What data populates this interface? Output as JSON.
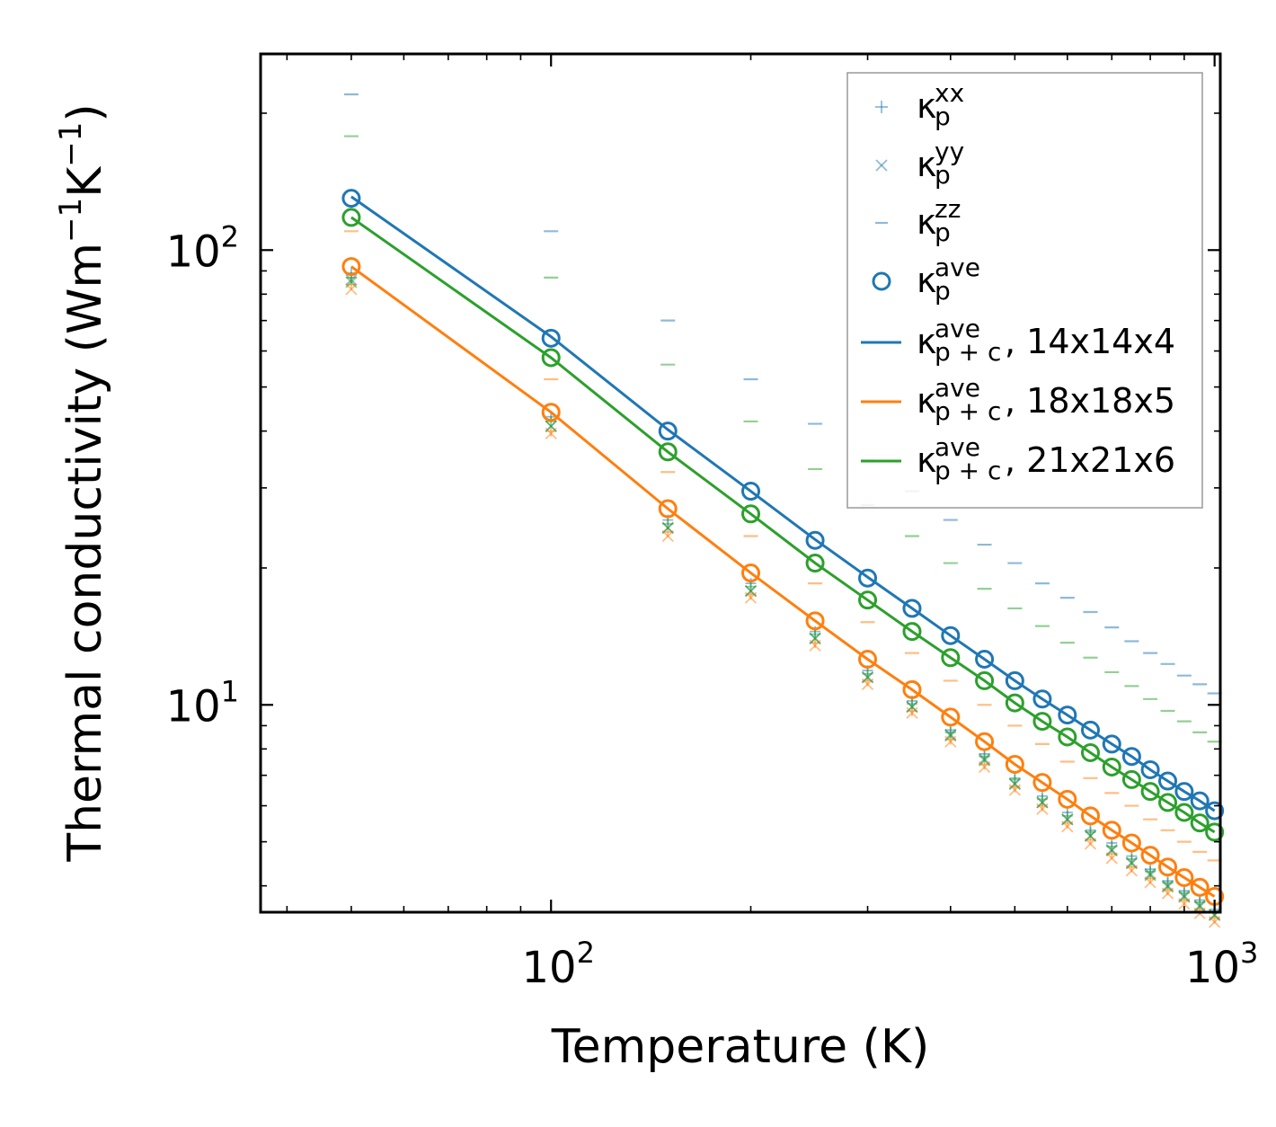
{
  "chart_data": {
    "type": "scatter",
    "title": "",
    "xlabel": "Temperature (K)",
    "ylabel": {
      "base": "Thermal conductivity (Wm",
      "exp1": "−1",
      "mid": "K",
      "exp2": "−1",
      "end": ")"
    },
    "xscale": "log",
    "yscale": "log",
    "xlim": [
      36.5,
      1020
    ],
    "ylim": [
      3.5,
      270
    ],
    "x_tick_labels": [
      {
        "value": 100,
        "base": "10",
        "exp": "2"
      },
      {
        "value": 1000,
        "base": "10",
        "exp": "3"
      }
    ],
    "y_tick_labels": [
      {
        "value": 10,
        "base": "10",
        "exp": "1"
      },
      {
        "value": 100,
        "base": "10",
        "exp": "2"
      }
    ],
    "grid": false,
    "legend_position": "top-right",
    "x": [
      50,
      100,
      150,
      200,
      250,
      300,
      350,
      400,
      450,
      500,
      550,
      600,
      650,
      700,
      750,
      800,
      850,
      900,
      950,
      1000
    ],
    "colors": {
      "blue": "#1f77b4",
      "orange": "#ff7f0e",
      "green": "#2ca02c"
    },
    "groups": [
      {
        "name": "14x14x4",
        "color": "#1f77b4",
        "kxx": [
          89,
          43,
          25.5,
          18.5,
          14.5,
          11.9,
          10.2,
          8.8,
          7.8,
          6.9,
          6.3,
          5.8,
          5.3,
          4.97,
          4.65,
          4.35,
          4.1,
          3.9,
          3.72,
          3.55
        ],
        "kyy": [
          86,
          41,
          24.5,
          17.8,
          14,
          11.5,
          9.9,
          8.6,
          7.6,
          6.7,
          6.1,
          5.6,
          5.15,
          4.8,
          4.5,
          4.25,
          4.0,
          3.8,
          3.62,
          3.45
        ],
        "kzz": [
          220,
          110,
          70,
          52,
          41.5,
          34.5,
          29.5,
          25.5,
          22.5,
          20.5,
          18.5,
          17.2,
          16,
          14.8,
          13.8,
          13,
          12.3,
          11.6,
          11.1,
          10.6
        ],
        "kave": [
          130,
          64,
          40,
          29.5,
          23,
          19,
          16.3,
          14.2,
          12.6,
          11.3,
          10.3,
          9.5,
          8.8,
          8.2,
          7.7,
          7.2,
          6.8,
          6.45,
          6.15,
          5.85
        ],
        "kpc": [
          131,
          64.5,
          40.3,
          29.5,
          23.1,
          19.1,
          16.3,
          14.2,
          12.6,
          11.3,
          10.3,
          9.5,
          8.8,
          8.2,
          7.7,
          7.2,
          6.8,
          6.45,
          6.15,
          5.85
        ]
      },
      {
        "name": "18x18x5",
        "color": "#ff7f0e",
        "kxx": [
          84,
          40,
          24,
          17.5,
          13.7,
          11.3,
          9.7,
          8.4,
          7.4,
          6.6,
          6.0,
          5.5,
          5.05,
          4.7,
          4.4,
          4.15,
          3.92,
          3.72,
          3.55,
          3.4
        ],
        "kyy": [
          82,
          39.5,
          23.5,
          17.2,
          13.5,
          11.1,
          9.6,
          8.3,
          7.3,
          6.5,
          5.9,
          5.4,
          4.95,
          4.6,
          4.32,
          4.07,
          3.85,
          3.65,
          3.48,
          3.33
        ],
        "kzz": [
          110,
          52,
          32.5,
          23.5,
          18.5,
          15.2,
          13,
          11.3,
          10,
          9.0,
          8.2,
          7.5,
          6.9,
          6.4,
          6.0,
          5.6,
          5.3,
          5.0,
          4.75,
          4.55
        ],
        "kave": [
          92,
          44,
          27,
          19.5,
          15.3,
          12.6,
          10.8,
          9.4,
          8.3,
          7.4,
          6.75,
          6.2,
          5.7,
          5.3,
          4.97,
          4.67,
          4.4,
          4.17,
          3.97,
          3.79
        ],
        "kpc": [
          92,
          44,
          27,
          19.5,
          15.3,
          12.6,
          10.8,
          9.4,
          8.3,
          7.4,
          6.75,
          6.2,
          5.7,
          5.3,
          4.97,
          4.67,
          4.4,
          4.17,
          3.97,
          3.79
        ]
      },
      {
        "name": "21x21x6",
        "color": "#2ca02c",
        "kxx": [
          87,
          42,
          25,
          18.2,
          14.3,
          11.7,
          10.05,
          8.7,
          7.7,
          6.85,
          6.2,
          5.7,
          5.25,
          4.88,
          4.58,
          4.3,
          4.06,
          3.86,
          3.68,
          3.52
        ],
        "kyy": [
          85,
          41,
          24.5,
          17.8,
          14,
          11.5,
          9.9,
          8.55,
          7.55,
          6.7,
          6.1,
          5.6,
          5.15,
          4.78,
          4.48,
          4.22,
          3.98,
          3.78,
          3.6,
          3.45
        ],
        "kzz": [
          178,
          87,
          56,
          42,
          33,
          27.5,
          23.5,
          20.5,
          18,
          16.3,
          14.9,
          13.7,
          12.7,
          11.8,
          11,
          10.3,
          9.7,
          9.2,
          8.7,
          8.3
        ],
        "kave": [
          118,
          58,
          36,
          26.3,
          20.5,
          17,
          14.5,
          12.7,
          11.3,
          10.1,
          9.2,
          8.5,
          7.85,
          7.3,
          6.85,
          6.45,
          6.1,
          5.8,
          5.5,
          5.25
        ],
        "kpc": [
          118,
          58,
          36,
          26.3,
          20.5,
          17,
          14.5,
          12.7,
          11.3,
          10.1,
          9.2,
          8.5,
          7.85,
          7.3,
          6.85,
          6.45,
          6.1,
          5.8,
          5.5,
          5.25
        ]
      }
    ],
    "legend": [
      {
        "marker": "plus",
        "color": "#1f77b4",
        "main": "κ",
        "sub": "p",
        "sup": "xx",
        "suffix": ""
      },
      {
        "marker": "x",
        "color": "#1f77b4",
        "main": "κ",
        "sub": "p",
        "sup": "yy",
        "suffix": ""
      },
      {
        "marker": "dash",
        "color": "#1f77b4",
        "main": "κ",
        "sub": "p",
        "sup": "zz",
        "suffix": ""
      },
      {
        "marker": "circle",
        "color": "#1f77b4",
        "main": "κ",
        "sub": "p",
        "sup": "ave",
        "suffix": ""
      },
      {
        "marker": "line",
        "color": "#1f77b4",
        "main": "κ",
        "sub": "p + c",
        "sup": "ave",
        "suffix": ", 14x14x4"
      },
      {
        "marker": "line",
        "color": "#ff7f0e",
        "main": "κ",
        "sub": "p + c",
        "sup": "ave",
        "suffix": ", 18x18x5"
      },
      {
        "marker": "line",
        "color": "#2ca02c",
        "main": "κ",
        "sub": "p + c",
        "sup": "ave",
        "suffix": ", 21x21x6"
      }
    ]
  }
}
